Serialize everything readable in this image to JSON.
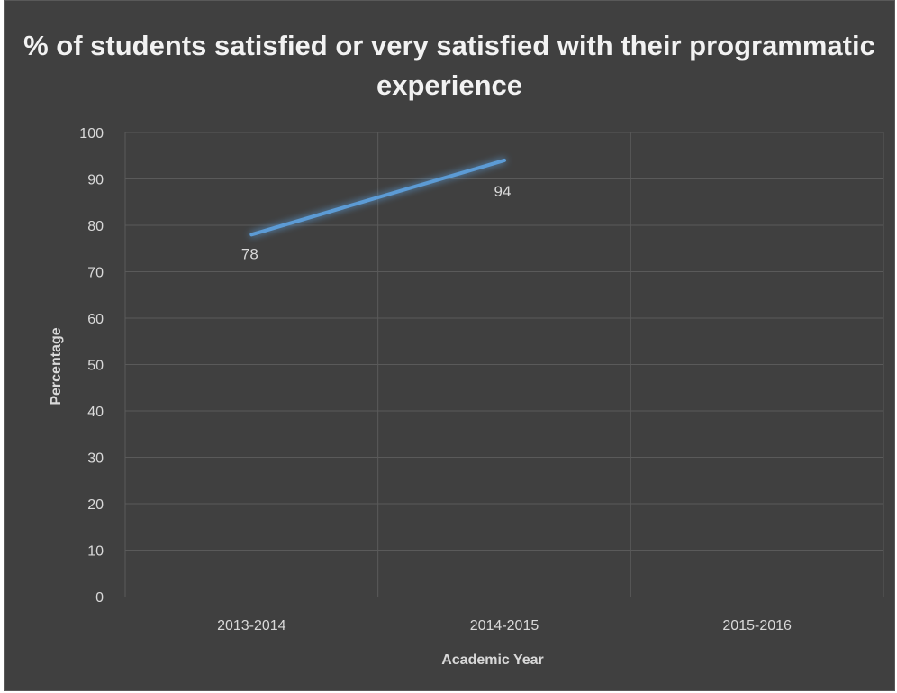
{
  "chart_data": {
    "type": "line",
    "title": "% of students satisfied or very satisfied with their programmatic experience",
    "xlabel": "Academic Year",
    "ylabel": "Percentage",
    "categories": [
      "2013-2014",
      "2014-2015",
      "2015-2016"
    ],
    "series": [
      {
        "values": [
          78,
          94,
          null
        ],
        "color": "#5b9bd5"
      }
    ],
    "data_labels": [
      "78",
      "94"
    ],
    "ylim": [
      0,
      100
    ],
    "yticks": [
      "0",
      "10",
      "20",
      "30",
      "40",
      "50",
      "60",
      "70",
      "80",
      "90",
      "100"
    ],
    "grid": true,
    "legend": "none",
    "background": "#404040"
  }
}
